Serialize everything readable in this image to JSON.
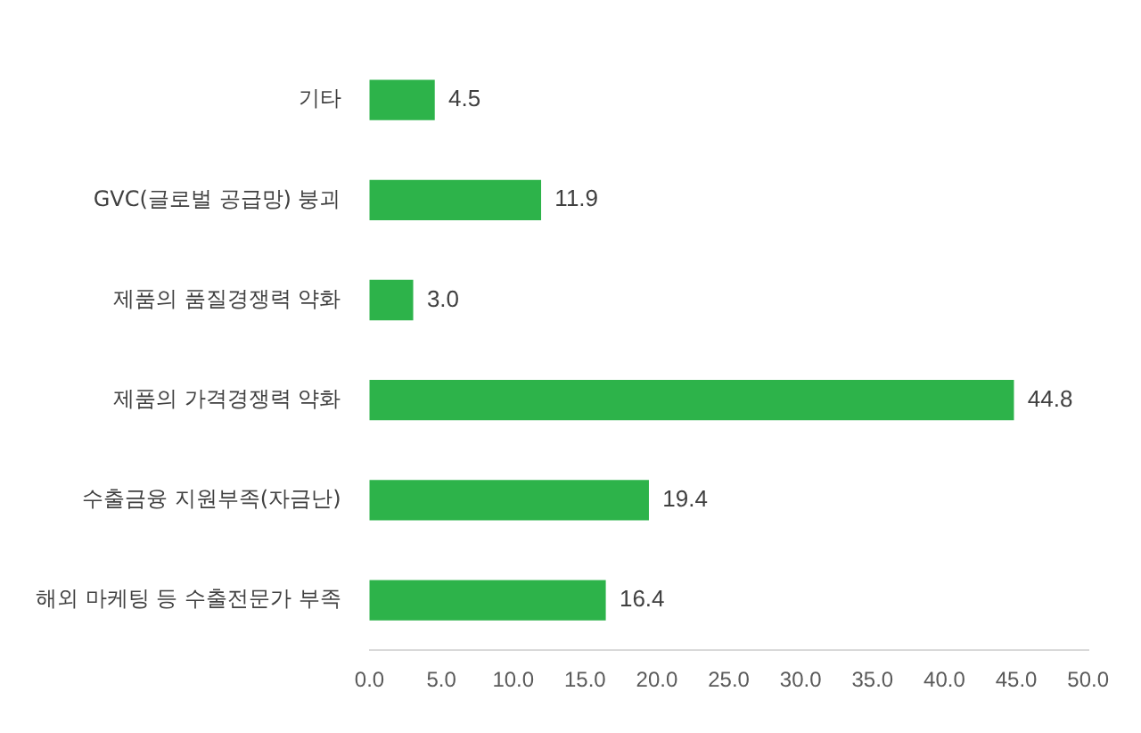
{
  "chart_data": {
    "type": "bar",
    "orientation": "horizontal",
    "categories": [
      "기타",
      "GVC(글로벌 공급망) 붕괴",
      "제품의 품질경쟁력 약화",
      "제품의 가격경쟁력 약화",
      "수출금융 지원부족(자금난)",
      "해외 마케팅 등 수출전문가 부족"
    ],
    "values": [
      4.5,
      11.9,
      3.0,
      44.8,
      19.4,
      16.4
    ],
    "value_labels": [
      "4.5",
      "11.9",
      "3.0",
      "44.8",
      "19.4",
      "16.4"
    ],
    "color": "#2db34a",
    "xlim": [
      0,
      50
    ],
    "xticks": [
      {
        "value": 0,
        "label": "0.0"
      },
      {
        "value": 5,
        "label": "5.0"
      },
      {
        "value": 10,
        "label": "10.0"
      },
      {
        "value": 15,
        "label": "15.0"
      },
      {
        "value": 20,
        "label": "20.0"
      },
      {
        "value": 25,
        "label": "25.0"
      },
      {
        "value": 30,
        "label": "30.0"
      },
      {
        "value": 35,
        "label": "35.0"
      },
      {
        "value": 40,
        "label": "40.0"
      },
      {
        "value": 45,
        "label": "45.0"
      },
      {
        "value": 50,
        "label": "50.0"
      }
    ],
    "grid": false,
    "legend": false
  }
}
